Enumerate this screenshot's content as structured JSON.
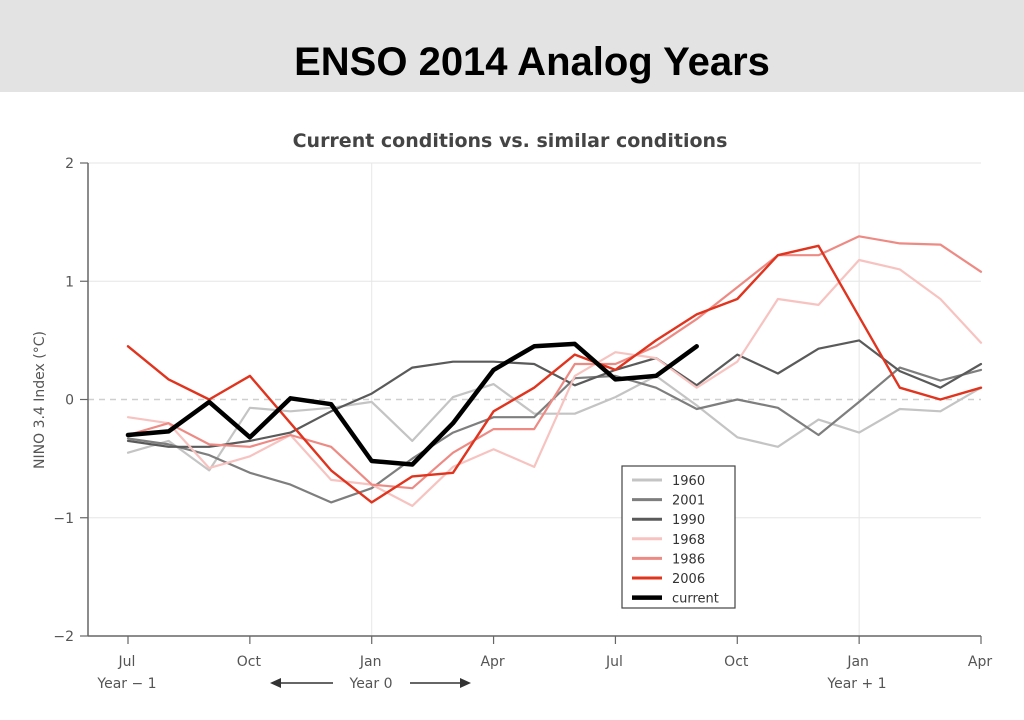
{
  "slide": {
    "title": "ENSO 2014 Analog Years"
  },
  "chart_data": {
    "type": "line",
    "title": "Current conditions vs. similar conditions",
    "ylabel": "NINO 3.4 Index (°C)",
    "ylim": [
      -2,
      2
    ],
    "yticks": [
      2,
      1,
      0,
      -1,
      -2
    ],
    "ytick_labels": [
      "2",
      "1",
      "0",
      "−1",
      "−2"
    ],
    "xlim": [
      0,
      21
    ],
    "xticks": [
      {
        "x": 0,
        "label": "Jul"
      },
      {
        "x": 3,
        "label": "Oct"
      },
      {
        "x": 6,
        "label": "Jan"
      },
      {
        "x": 9,
        "label": "Apr"
      },
      {
        "x": 12,
        "label": "Jul"
      },
      {
        "x": 15,
        "label": "Oct"
      },
      {
        "x": 18,
        "label": "Jan"
      },
      {
        "x": 21,
        "label": "Apr"
      }
    ],
    "year_labels": {
      "year_minus_1": "Year − 1",
      "year_0": "Year 0",
      "year_plus_1": "Year + 1"
    },
    "zero_line": true,
    "vertical_grid_at": [
      6,
      18
    ],
    "legend_position": "lower-right inside plot",
    "series": [
      {
        "name": "1960",
        "color": "#c4c4c4",
        "width": 2.2,
        "values": [
          -0.45,
          -0.35,
          -0.6,
          -0.07,
          -0.1,
          -0.07,
          -0.02,
          -0.35,
          0.02,
          0.13,
          -0.12,
          -0.12,
          0.02,
          0.2,
          -0.05,
          -0.32,
          -0.4,
          -0.17,
          -0.28,
          -0.08,
          -0.1,
          0.1
        ]
      },
      {
        "name": "2001",
        "color": "#7e7e7e",
        "width": 2.2,
        "values": [
          -0.33,
          -0.38,
          -0.47,
          -0.62,
          -0.72,
          -0.87,
          -0.75,
          -0.5,
          -0.28,
          -0.15,
          -0.15,
          0.18,
          0.2,
          0.1,
          -0.08,
          0.0,
          -0.07,
          -0.3,
          -0.02,
          0.27,
          0.16,
          0.25
        ]
      },
      {
        "name": "1990",
        "color": "#5a5a5a",
        "width": 2.2,
        "values": [
          -0.35,
          -0.4,
          -0.4,
          -0.35,
          -0.28,
          -0.1,
          0.05,
          0.27,
          0.32,
          0.32,
          0.3,
          0.12,
          0.25,
          0.35,
          0.12,
          0.38,
          0.22,
          0.43,
          0.5,
          0.24,
          0.1,
          0.3
        ]
      },
      {
        "name": "1968",
        "color": "#f7c3c0",
        "width": 2.2,
        "values": [
          -0.15,
          -0.2,
          -0.58,
          -0.48,
          -0.3,
          -0.68,
          -0.72,
          -0.9,
          -0.57,
          -0.42,
          -0.57,
          0.2,
          0.4,
          0.35,
          0.1,
          0.32,
          0.85,
          0.8,
          1.18,
          1.1,
          0.85,
          0.48
        ]
      },
      {
        "name": "1986",
        "color": "#ee8a84",
        "width": 2.2,
        "values": [
          -0.3,
          -0.2,
          -0.38,
          -0.4,
          -0.3,
          -0.4,
          -0.72,
          -0.75,
          -0.45,
          -0.25,
          -0.25,
          0.3,
          0.3,
          0.45,
          0.68,
          0.95,
          1.22,
          1.22,
          1.38,
          1.32,
          1.31,
          1.08
        ]
      },
      {
        "name": "2006",
        "color": "#e0341e",
        "width": 2.4,
        "values": [
          0.45,
          0.17,
          0.0,
          0.2,
          -0.2,
          -0.6,
          -0.87,
          -0.65,
          -0.62,
          -0.1,
          0.1,
          0.38,
          0.25,
          0.5,
          0.72,
          0.85,
          1.22,
          1.3,
          0.7,
          0.1,
          0.0,
          0.1
        ]
      },
      {
        "name": "current",
        "color": "#000000",
        "width": 4.5,
        "values": [
          -0.3,
          -0.27,
          -0.02,
          -0.32,
          0.01,
          -0.04,
          -0.52,
          -0.55,
          -0.2,
          0.25,
          0.45,
          0.47,
          0.17,
          0.2,
          0.45
        ]
      }
    ]
  }
}
